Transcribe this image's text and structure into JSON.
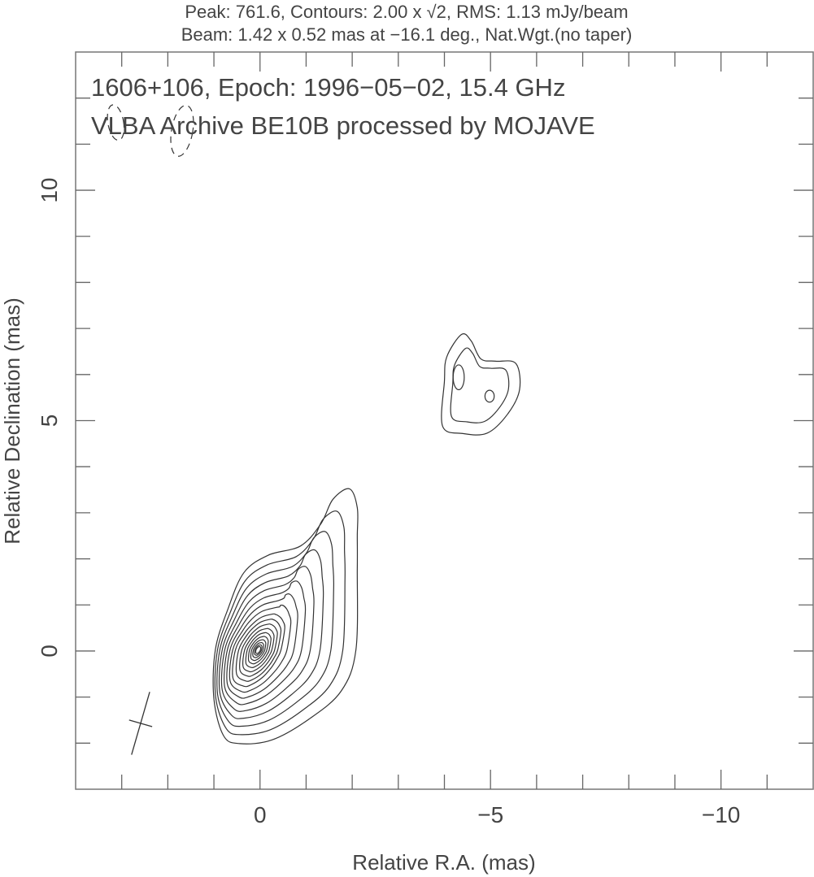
{
  "chart_data": {
    "type": "contour",
    "header_line1": "Peak: 761.6, Contours: 2.00 x √2, RMS: 1.13 mJy/beam",
    "header_line2": "Beam: 1.42 x 0.52 mas at −16.1 deg., Nat.Wgt.(no taper)",
    "title_line1": "1606+106, Epoch: 1996−05−02, 15.4 GHz",
    "title_line2": "VLBA Archive BE10B processed by MOJAVE",
    "xlabel": "Relative R.A. (mas)",
    "ylabel": "Relative Declination (mas)",
    "xlim": [
      4,
      -12
    ],
    "ylim": [
      -3,
      13
    ],
    "xticks": [
      {
        "v": 0,
        "label": "0"
      },
      {
        "v": -5,
        "label": "−5"
      },
      {
        "v": -10,
        "label": "−10"
      }
    ],
    "yticks": [
      {
        "v": 0,
        "label": "0"
      },
      {
        "v": 5,
        "label": "5"
      },
      {
        "v": 10,
        "label": "10"
      }
    ],
    "peak_mJy": 761.6,
    "rms_mJy": 1.13,
    "contour_factor": "√2",
    "beam": {
      "major_mas": 1.42,
      "minor_mas": 0.52,
      "pa_deg": -16.1,
      "center": [
        2.59,
        -1.57
      ]
    },
    "components": [
      {
        "name": "core",
        "peak": [
          0.04,
          0.02
        ],
        "levels": 18,
        "outer": [
          [
            0.44,
            -2.01
          ],
          [
            0.79,
            -1.84
          ],
          [
            1.0,
            -1.04
          ],
          [
            0.97,
            0.02
          ],
          [
            0.7,
            0.9
          ],
          [
            0.35,
            1.7
          ],
          [
            -0.18,
            2.08
          ],
          [
            -0.88,
            2.28
          ],
          [
            -1.32,
            2.76
          ],
          [
            -1.58,
            3.29
          ],
          [
            -1.94,
            3.52
          ],
          [
            -2.11,
            3.11
          ],
          [
            -2.11,
            2.49
          ],
          [
            -2.11,
            1.78
          ],
          [
            -2.08,
            0.02
          ],
          [
            -1.76,
            -0.87
          ],
          [
            -1.06,
            -1.48
          ],
          [
            -0.26,
            -1.93
          ]
        ]
      },
      {
        "name": "jet",
        "peak": [
          -4.7,
          5.7
        ],
        "levels": 2,
        "outer": [
          [
            -3.96,
            4.88
          ],
          [
            -4.0,
            5.85
          ],
          [
            -4.05,
            6.38
          ],
          [
            -4.37,
            6.87
          ],
          [
            -4.58,
            6.73
          ],
          [
            -4.79,
            6.34
          ],
          [
            -5.11,
            6.29
          ],
          [
            -5.55,
            6.24
          ],
          [
            -5.63,
            5.67
          ],
          [
            -5.37,
            5.14
          ],
          [
            -4.93,
            4.73
          ],
          [
            -4.4,
            4.72
          ]
        ],
        "sub_peaks": [
          {
            "center": [
              -4.31,
              5.94
            ],
            "rx": 0.12,
            "ry": 0.27
          },
          {
            "center": [
              -4.98,
              5.53
            ],
            "rx": 0.1,
            "ry": 0.13
          }
        ]
      }
    ],
    "negative_contours": [
      {
        "center": [
          3.13,
          11.47
        ],
        "rx": 0.17,
        "ry": 0.39,
        "tilt_deg": -10
      },
      {
        "center": [
          1.69,
          11.29
        ],
        "rx": 0.23,
        "ry": 0.56,
        "tilt_deg": 10
      }
    ]
  }
}
